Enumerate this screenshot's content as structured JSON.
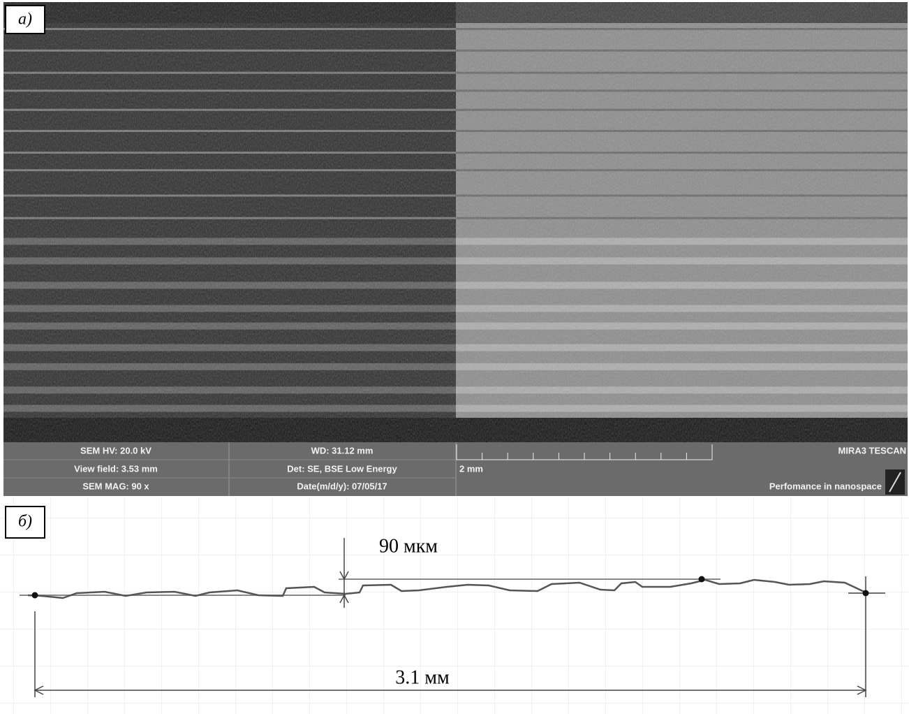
{
  "panel_a": {
    "label": "а)",
    "info": {
      "hv": "SEM HV: 20.0 kV",
      "view_field": "View field: 3.53 mm",
      "mag": "SEM MAG: 90 x",
      "wd": "WD: 31.12 mm",
      "det": "Det: SE, BSE Low Energy",
      "date": "Date(m/d/y): 07/05/17",
      "scale": "2 mm",
      "brand": "MIRA3 TESCAN",
      "slogan": "Perfomance in nanospace"
    }
  },
  "panel_b": {
    "label": "б)",
    "step": "90 мкм",
    "length": "3.1 мм"
  }
}
